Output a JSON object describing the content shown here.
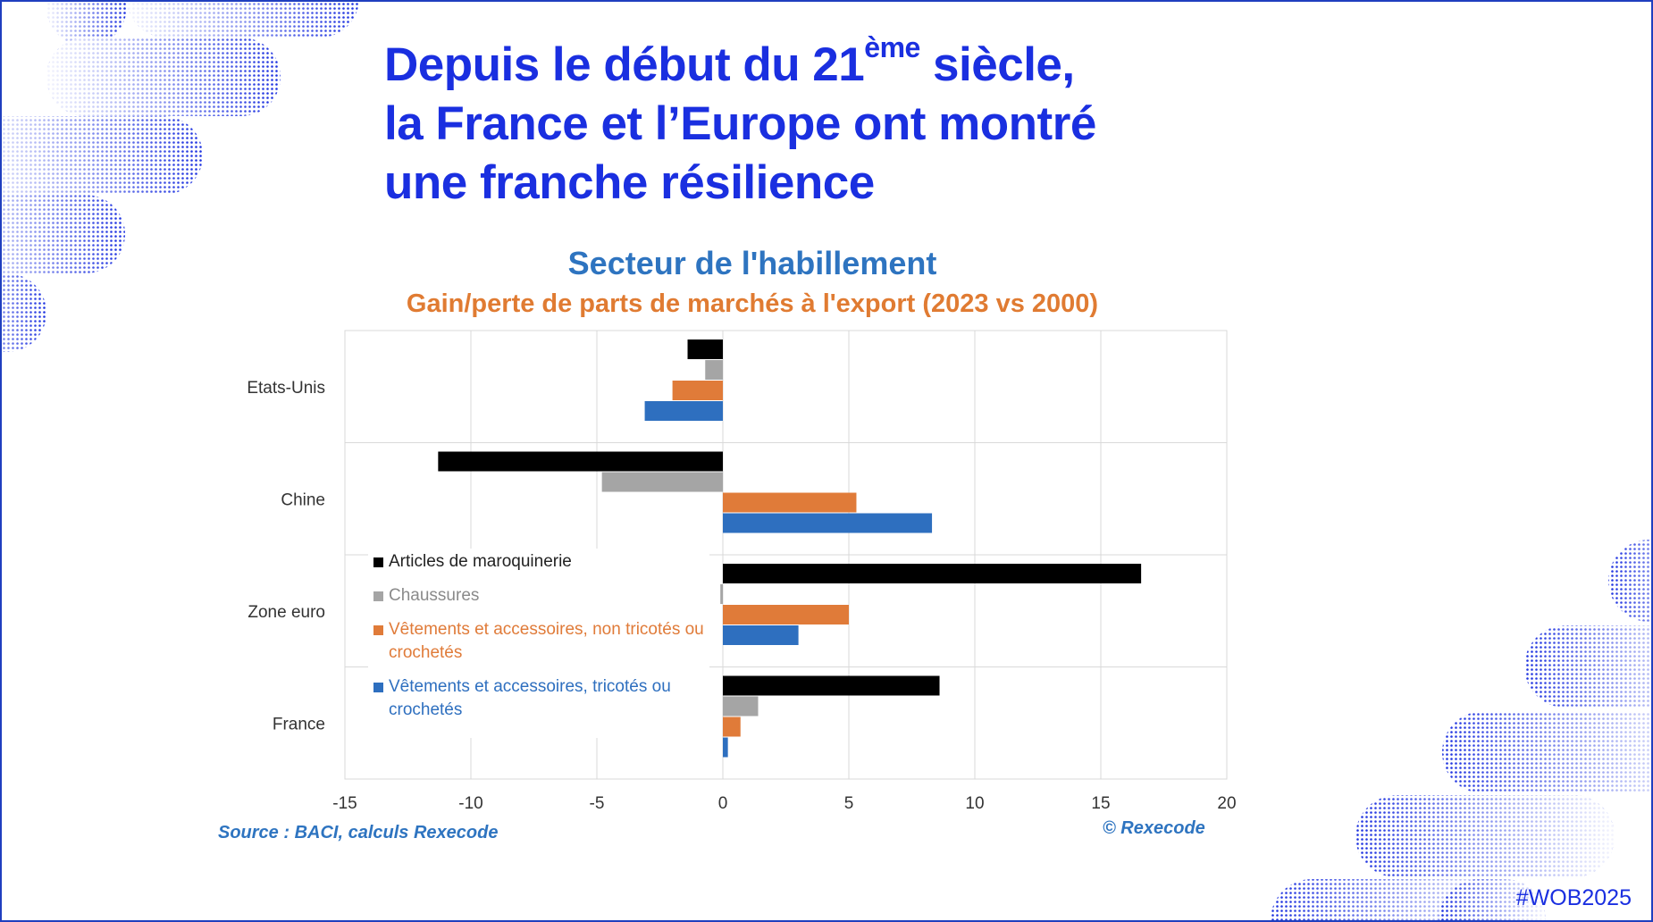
{
  "headline": {
    "line1_start": "Depuis le début du 21",
    "line1_sup": "ème",
    "line1_end": " siècle,",
    "line2": "la France et l’Europe ont montré",
    "line3": "une franche résilience"
  },
  "chart_data": {
    "type": "bar",
    "orientation": "horizontal",
    "title": "Secteur de l'habillement",
    "subtitle": "Gain/perte de parts de marchés à l'export (2023 vs 2000)",
    "categories": [
      "Etats-Unis",
      "Chine",
      "Zone euro",
      "France"
    ],
    "series": [
      {
        "name": "Articles de maroquinerie",
        "color": "#000000",
        "values": [
          -1.4,
          -11.3,
          16.6,
          8.6
        ]
      },
      {
        "name": "Chaussures",
        "color": "#a5a5a5",
        "values": [
          -0.7,
          -4.8,
          -0.1,
          1.4
        ]
      },
      {
        "name": "Vêtements et accessoires, non tricotés ou crochetés",
        "color": "#e07b39",
        "values": [
          -2.0,
          5.3,
          5.0,
          0.7
        ]
      },
      {
        "name": "Vêtements et accessoires, tricotés ou crochetés",
        "color": "#2e6fbf",
        "values": [
          -3.1,
          8.3,
          3.0,
          0.2
        ]
      }
    ],
    "xlim": [
      -15,
      20
    ],
    "xticks": [
      -15,
      -10,
      -5,
      0,
      5,
      10,
      15,
      20
    ],
    "grid": true,
    "legend_position": "left-inside"
  },
  "legend_text_colors": [
    "#222222",
    "#8a8a8a",
    "#e07b39",
    "#2e6fbf"
  ],
  "source": "Source :  BACI, calculs Rexecode",
  "copyright": "© Rexecode",
  "hashtag": "#WOB2025",
  "colors": {
    "headline": "#1a2fe0",
    "title": "#2e74c0",
    "subtitle": "#e07b32"
  }
}
